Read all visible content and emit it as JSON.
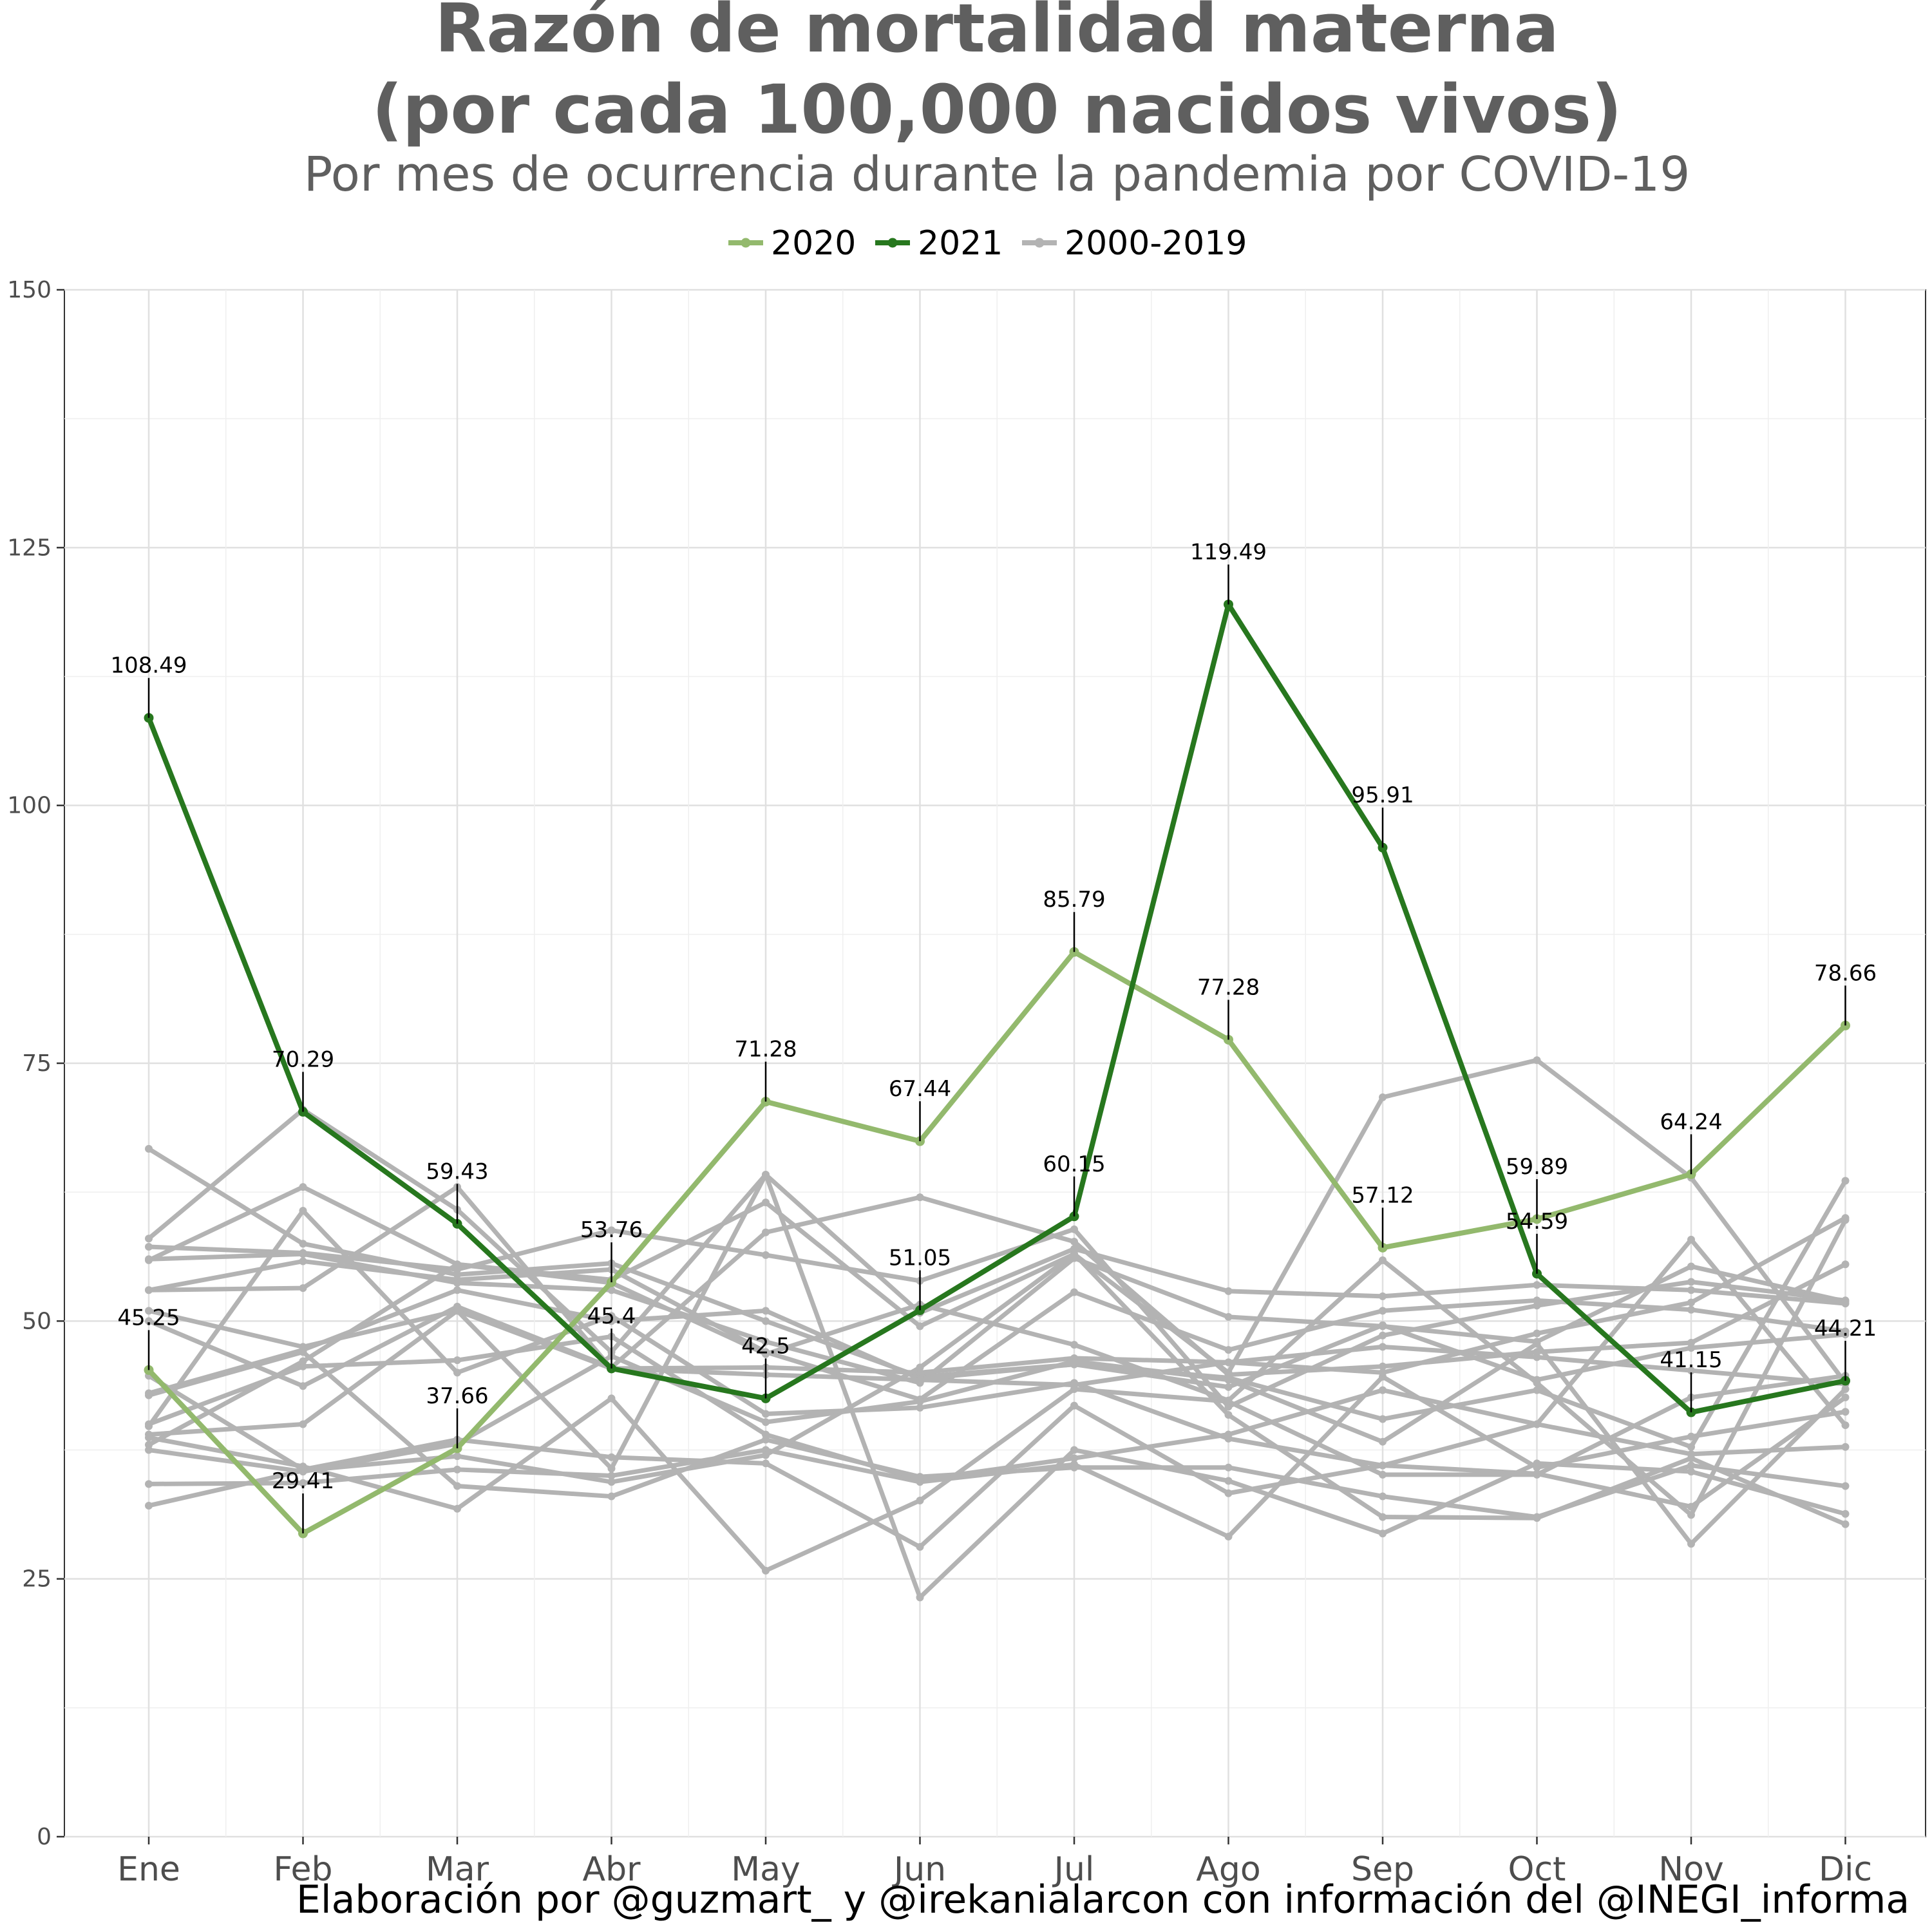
{
  "chart_data": {
    "type": "line",
    "title_line1": "Razón de mortalidad materna",
    "title_line2": "(por cada 100,000 nacidos vivos)",
    "subtitle": "Por mes de ocurrencia durante la pandemia por COVID-19",
    "caption": "Elaboración por @guzmart_ y @irekanialarcon con información del @INEGI_informa",
    "xlabel": "",
    "ylabel": "",
    "ylim": [
      0,
      150
    ],
    "yticks": [
      0,
      25,
      50,
      75,
      100,
      125,
      150
    ],
    "grid": true,
    "legend_position": "top",
    "categories": [
      "Ene",
      "Feb",
      "Mar",
      "Abr",
      "May",
      "Jun",
      "Jul",
      "Ago",
      "Sep",
      "Oct",
      "Nov",
      "Dic"
    ],
    "legend": [
      {
        "name": "2020",
        "color": "#93b96d"
      },
      {
        "name": "2021",
        "color": "#27771e"
      },
      {
        "name": "2000-2019",
        "color": "#b3b3b3"
      }
    ],
    "series": [
      {
        "name": "2020",
        "color": "#93b96d",
        "labeled": true,
        "values": [
          45.25,
          29.41,
          37.66,
          53.76,
          71.28,
          67.44,
          85.79,
          77.28,
          57.12,
          59.89,
          64.24,
          78.66
        ]
      },
      {
        "name": "2021",
        "color": "#27771e",
        "labeled": true,
        "values": [
          108.49,
          70.29,
          59.43,
          45.4,
          42.5,
          51.05,
          60.15,
          119.49,
          95.91,
          54.59,
          41.15,
          44.21
        ]
      }
    ],
    "historical": {
      "name": "2000-2019",
      "color": "#b3b3b3",
      "lines": [
        [
          66.7,
          57.5,
          54.5,
          55.6,
          50.0,
          44.6,
          45.8,
          44.5,
          40.5,
          43.3,
          37.8,
          63.6
        ],
        [
          58.0,
          70.5,
          60.8,
          47.0,
          64.2,
          50.8,
          57.0,
          52.9,
          52.4,
          53.5,
          53.0,
          51.7
        ],
        [
          55.9,
          63.0,
          55.5,
          54.0,
          61.5,
          49.5,
          56.5,
          45.0,
          71.7,
          75.3,
          63.9,
          44.0
        ],
        [
          57.2,
          56.6,
          55.0,
          58.8,
          56.4,
          53.9,
          58.9,
          41.7,
          48.6,
          51.5,
          53.8,
          52.0
        ],
        [
          53.0,
          55.8,
          54.0,
          55.0,
          47.0,
          42.4,
          52.8,
          47.2,
          51.0,
          52.0,
          51.1,
          49.0
        ],
        [
          56.0,
          56.5,
          53.7,
          53.0,
          48.0,
          44.0,
          56.1,
          50.4,
          49.5,
          48.0,
          55.3,
          51.9
        ],
        [
          51.0,
          47.5,
          51.0,
          45.4,
          45.5,
          45.0,
          46.4,
          46.0,
          47.5,
          46.5,
          45.2,
          43.9
        ],
        [
          43.0,
          47.2,
          53.0,
          50.0,
          51.0,
          44.4,
          45.8,
          43.6,
          49.6,
          44.3,
          47.4,
          48.7
        ],
        [
          50.0,
          43.7,
          51.4,
          45.5,
          58.6,
          62.0,
          57.7,
          44.8,
          45.6,
          47.0,
          47.9,
          55.5
        ],
        [
          40.0,
          45.6,
          46.2,
          48.5,
          39.0,
          34.6,
          36.7,
          39.0,
          43.3,
          40.0,
          37.1,
          37.8
        ],
        [
          44.7,
          35.6,
          38.5,
          36.8,
          36.2,
          28.1,
          41.8,
          33.3,
          36.0,
          35.2,
          32.0,
          42.6
        ],
        [
          39.0,
          40.0,
          51.0,
          35.7,
          64.2,
          23.2,
          37.5,
          34.5,
          29.4,
          36.2,
          35.4,
          31.3
        ],
        [
          42.8,
          47.0,
          34.0,
          33.0,
          38.5,
          34.9,
          35.8,
          35.8,
          33.0,
          31.0,
          36.0,
          34.0
        ],
        [
          38.7,
          35.9,
          31.8,
          42.5,
          25.8,
          32.6,
          43.4,
          42.2,
          35.1,
          35.1,
          42.6,
          44.7
        ],
        [
          37.5,
          35.4,
          38.1,
          46.6,
          40.2,
          42.2,
          46.1,
          44.3,
          38.3,
          47.8,
          28.4,
          43.4
        ],
        [
          34.2,
          34.3,
          35.6,
          35.0,
          37.5,
          34.4,
          36.1,
          29.1,
          44.6,
          35.8,
          38.8,
          41.2
        ],
        [
          32.1,
          35.5,
          36.9,
          34.4,
          37.0,
          45.5,
          56.5,
          40.9,
          31.0,
          30.9,
          36.7,
          30.3
        ],
        [
          39.8,
          60.7,
          45.0,
          50.5,
          41.0,
          41.6,
          44.0,
          38.6,
          36.0,
          40.0,
          57.9,
          39.9
        ],
        [
          53.0,
          53.2,
          63.0,
          45.4,
          44.8,
          44.3,
          43.8,
          46.0,
          45.0,
          48.8,
          51.8,
          60.0
        ],
        [
          38.0,
          46.1,
          55.5,
          53.7,
          46.8,
          51.6,
          47.7,
          42.3,
          55.9,
          44.0,
          31.2,
          59.8
        ]
      ]
    }
  }
}
